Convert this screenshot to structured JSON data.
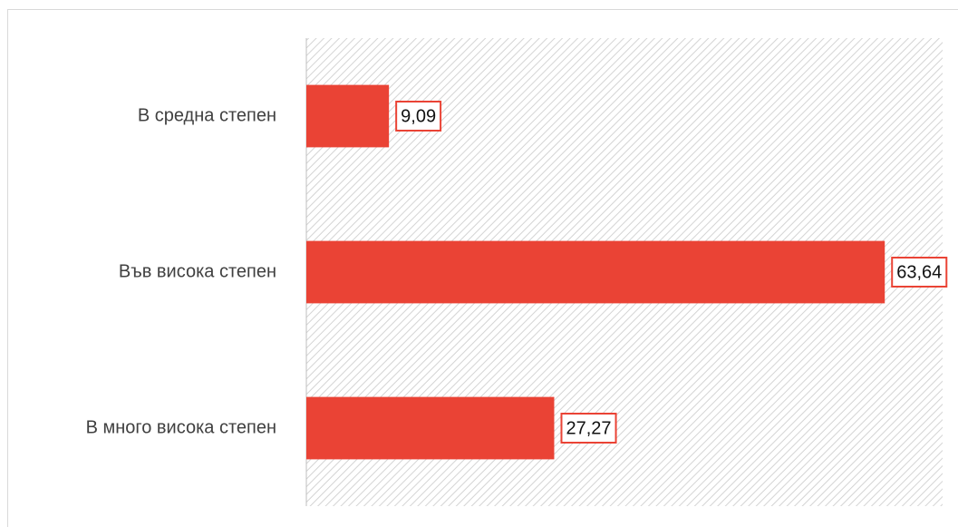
{
  "chart_data": {
    "type": "bar",
    "orientation": "horizontal",
    "categories": [
      "В средна степен",
      "Във висока степен",
      "В много висока степен"
    ],
    "values": [
      9.09,
      63.64,
      27.27
    ],
    "value_labels": [
      "9,09",
      "63,64",
      "27,27"
    ],
    "color": "#ea4335",
    "xlim": [
      0,
      70
    ]
  }
}
